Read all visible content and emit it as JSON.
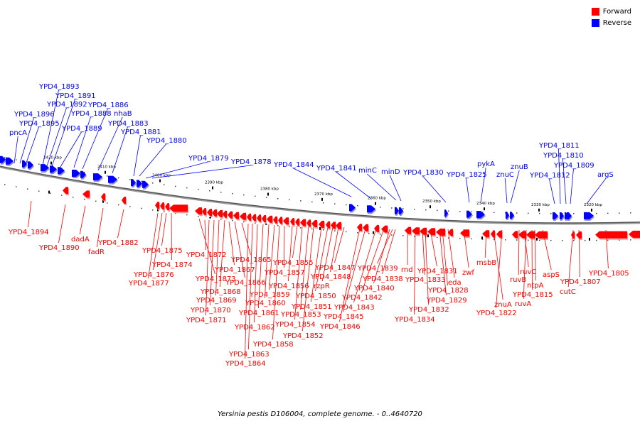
{
  "legend": {
    "forward": {
      "label": "Forward",
      "color": "#ff0000"
    },
    "reverse": {
      "label": "Reverse",
      "color": "#0000ff"
    }
  },
  "caption": "Yersinia pestis D106004, complete genome. - 0..4640720",
  "ruler": {
    "tick_labels": [
      "2420 kbp",
      "2410 kbp",
      "2400 kbp",
      "2390 kbp",
      "2380 kbp",
      "2370 kbp",
      "2360 kbp",
      "2350 kbp",
      "2340 kbp",
      "2330 kbp",
      "2320 kbp"
    ]
  },
  "genes_reverse": [
    "pncA",
    "YPD4_1896",
    "YPD4_1895",
    "YPD4_1893",
    "YPD4_1892",
    "YPD4_1891",
    "YPD4_1889",
    "YPD4_1888",
    "YPD4_1886",
    "nhaB",
    "YPD4_1883",
    "YPD4_1881",
    "YPD4_1880",
    "YPD4_1879",
    "YPD4_1878",
    "YPD4_1844",
    "YPD4_1841",
    "minC",
    "minD",
    "YPD4_1830",
    "YPD4_1825",
    "pykA",
    "znuC",
    "znuB",
    "YPD4_1812",
    "YPD4_1811",
    "YPD4_1810",
    "YPD4_1809",
    "argS"
  ],
  "genes_forward": [
    "YPD4_1894",
    "YPD4_1890",
    "dadA",
    "fadR",
    "YPD4_1882",
    "YPD4_1877",
    "YPD4_1876",
    "YPD4_1875",
    "YPD4_1874",
    "YPD4_1873",
    "YPD4_1872",
    "YPD4_1871",
    "YPD4_1870",
    "YPD4_1869",
    "YPD4_1868",
    "YPD4_1867",
    "YPD4_1866",
    "YPD4_1865",
    "YPD4_1864",
    "YPD4_1863",
    "YPD4_1862",
    "YPD4_1861",
    "YPD4_1860",
    "YPD4_1859",
    "YPD4_1858",
    "YPD4_1857",
    "YPD4_1856",
    "YPD4_1855",
    "YPD4_1854",
    "YPD4_1853",
    "YPD4_1852",
    "YPD4_1851",
    "YPD4_1850",
    "rzpR",
    "YPD4_1848",
    "YPD4_1847",
    "YPD4_1846",
    "YPD4_1845",
    "YPD4_1843",
    "YPD4_1842",
    "YPD4_1840",
    "YPD4_1839",
    "YPD4_1838",
    "rnd",
    "YPD4_1834",
    "YPD4_1833",
    "YPD4_1832",
    "YPD4_1831",
    "eda",
    "YPD4_1829",
    "YPD4_1828",
    "zwf",
    "msbB",
    "znuA",
    "YPD4_1822",
    "ruvB",
    "ruvA",
    "ruvC",
    "YPD4_1815",
    "ntpA",
    "aspS",
    "cutC",
    "YPD4_1807",
    "YPD4_1805"
  ]
}
